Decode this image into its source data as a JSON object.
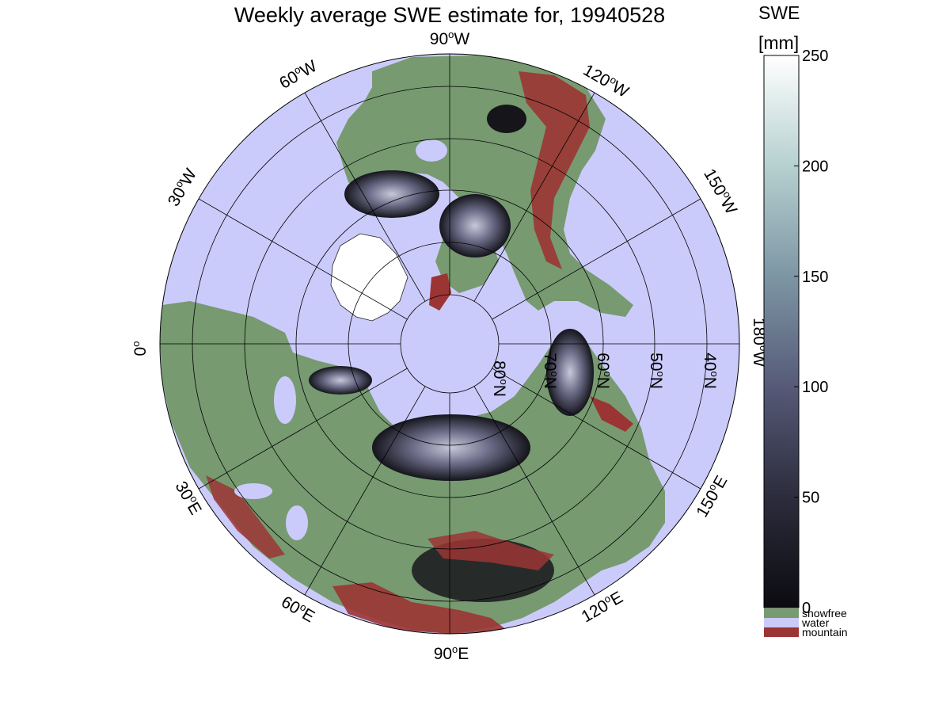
{
  "title": "Weekly average SWE estimate for, 19940528",
  "colorbar": {
    "label_line1": "SWE",
    "label_line2": "[mm]",
    "ticks": [
      "0",
      "50",
      "100",
      "150",
      "200",
      "250"
    ],
    "tick_values": [
      0,
      50,
      100,
      150,
      200,
      250
    ],
    "range": [
      0,
      250
    ]
  },
  "classes": [
    {
      "name": "snowfree",
      "color": "#779a71"
    },
    {
      "name": "water",
      "color": "#cbcbfb"
    },
    {
      "name": "mountain",
      "color": "#9b3534"
    }
  ],
  "longitude_labels": [
    {
      "deg": "90",
      "hemi": "W"
    },
    {
      "deg": "120",
      "hemi": "W"
    },
    {
      "deg": "150",
      "hemi": "W"
    },
    {
      "deg": "180",
      "hemi": "W"
    },
    {
      "deg": "150",
      "hemi": "E"
    },
    {
      "deg": "120",
      "hemi": "E"
    },
    {
      "deg": "90",
      "hemi": "E"
    },
    {
      "deg": "60",
      "hemi": "E"
    },
    {
      "deg": "30",
      "hemi": "E"
    },
    {
      "deg": "0",
      "hemi": ""
    },
    {
      "deg": "30",
      "hemi": "W"
    },
    {
      "deg": "60",
      "hemi": "W"
    }
  ],
  "latitude_labels": [
    {
      "deg": "80",
      "hemi": "N"
    },
    {
      "deg": "70",
      "hemi": "N"
    },
    {
      "deg": "60",
      "hemi": "N"
    },
    {
      "deg": "50",
      "hemi": "N"
    },
    {
      "deg": "40",
      "hemi": "N"
    }
  ],
  "colors": {
    "water": "#cbcbfb",
    "snowfree": "#779a71",
    "mountain": "#9b3534",
    "snow_low": "#0d0d12",
    "snow_mid": "#545470",
    "snow_high": "#ffffff"
  }
}
